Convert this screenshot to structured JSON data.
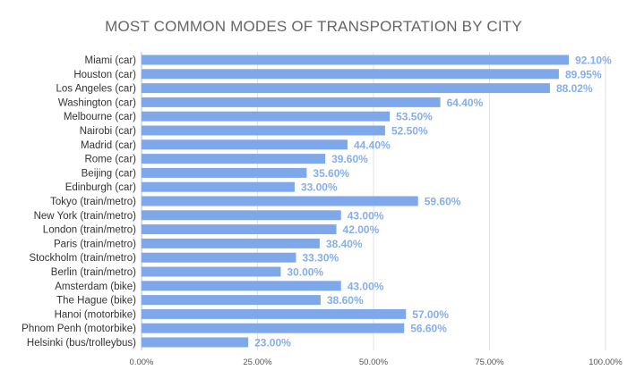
{
  "chart_data": {
    "type": "bar",
    "orientation": "horizontal",
    "title": "MOST COMMON MODES OF TRANSPORTATION BY CITY",
    "xlabel": "",
    "ylabel": "",
    "xlim": [
      0,
      100
    ],
    "grid": true,
    "legend": "none",
    "bar_color": "#7fa8ea",
    "value_label_color": "#86aeea",
    "categories": [
      "Miami (car)",
      "Houston (car)",
      "Los Angeles (car)",
      "Washington (car)",
      "Melbourne (car)",
      "Nairobi (car)",
      "Madrid (car)",
      "Rome (car)",
      "Beijing (car)",
      "Edinburgh (car)",
      "Tokyo (train/metro)",
      "New York (train/metro)",
      "London (train/metro)",
      "Paris (train/metro)",
      "Stockholm (train/metro)",
      "Berlin (train/metro)",
      "Amsterdam (bike)",
      "The Hague (bike)",
      "Hanoi (motorbike)",
      "Phnom Penh (motorbike)",
      "Helsinki (bus/trolleybus)"
    ],
    "values": [
      92.1,
      89.95,
      88.02,
      64.4,
      53.5,
      52.5,
      44.4,
      39.6,
      35.6,
      33.0,
      59.6,
      43.0,
      42.0,
      38.4,
      33.3,
      30.0,
      43.0,
      38.6,
      57.0,
      56.6,
      23.0
    ],
    "value_labels": [
      "92.10%",
      "89.95%",
      "88.02%",
      "64.40%",
      "53.50%",
      "52.50%",
      "44.40%",
      "39.60%",
      "35.60%",
      "33.00%",
      "59.60%",
      "43.00%",
      "42.00%",
      "38.40%",
      "33.30%",
      "30.00%",
      "43.00%",
      "38.60%",
      "57.00%",
      "56.60%",
      "23.00%"
    ],
    "x_ticks": [
      0,
      25,
      50,
      75,
      100
    ],
    "x_tick_labels": [
      "0.00%",
      "25.00%",
      "50.00%",
      "75.00%",
      "100.00%"
    ]
  }
}
